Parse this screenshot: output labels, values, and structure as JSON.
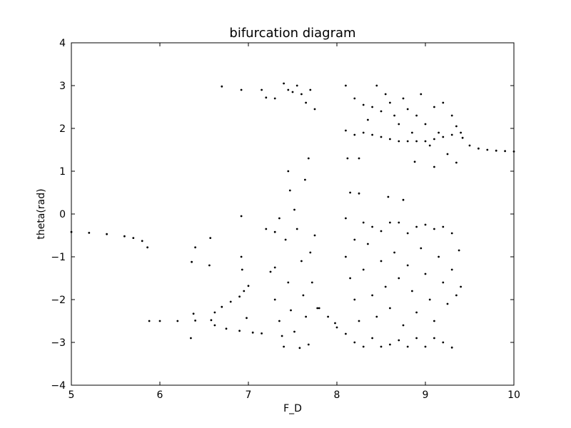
{
  "chart_data": {
    "type": "scatter",
    "title": "bifurcation diagram",
    "xlabel": "F_D",
    "ylabel": "theta(rad)",
    "xlim": [
      5,
      10
    ],
    "ylim": [
      -4,
      4
    ],
    "x_ticks": [
      5,
      6,
      7,
      8,
      9,
      10
    ],
    "y_ticks": [
      -4,
      -3,
      -2,
      -1,
      0,
      1,
      2,
      3,
      4
    ],
    "x_tick_labels": [
      "5",
      "6",
      "7",
      "8",
      "9",
      "10"
    ],
    "y_tick_labels": [
      "−4",
      "−3",
      "−2",
      "−1",
      "0",
      "1",
      "2",
      "3",
      "4"
    ],
    "grid": false,
    "marker_color": "#000000",
    "series": [
      {
        "points": [
          [
            5.0,
            -0.42
          ],
          [
            5.2,
            -0.44
          ],
          [
            5.4,
            -0.47
          ],
          [
            5.6,
            -0.52
          ],
          [
            5.7,
            -0.56
          ],
          [
            5.8,
            -0.63
          ],
          [
            5.86,
            -0.78
          ],
          [
            5.88,
            -2.5
          ],
          [
            6.0,
            -2.5
          ],
          [
            6.2,
            -2.5
          ],
          [
            6.4,
            -2.49
          ],
          [
            6.58,
            -2.48
          ],
          [
            6.62,
            -2.3
          ],
          [
            6.7,
            -2.17
          ],
          [
            6.8,
            -2.05
          ],
          [
            6.9,
            -1.93
          ],
          [
            6.95,
            -1.8
          ],
          [
            7.0,
            -1.68
          ],
          [
            6.62,
            -2.6
          ],
          [
            6.75,
            -2.68
          ],
          [
            6.9,
            -2.73
          ],
          [
            7.05,
            -2.77
          ],
          [
            7.15,
            -2.79
          ],
          [
            6.36,
            -1.12
          ],
          [
            6.4,
            -0.78
          ],
          [
            6.38,
            -2.33
          ],
          [
            6.35,
            -2.9
          ],
          [
            6.56,
            -1.2
          ],
          [
            6.57,
            -0.56
          ],
          [
            6.7,
            2.98
          ],
          [
            6.92,
            2.9
          ],
          [
            6.92,
            -0.05
          ],
          [
            6.92,
            -1.0
          ],
          [
            6.93,
            -1.3
          ],
          [
            6.98,
            -2.43
          ],
          [
            7.15,
            2.9
          ],
          [
            7.2,
            2.72
          ],
          [
            7.3,
            2.7
          ],
          [
            7.2,
            -0.35
          ],
          [
            7.3,
            -0.42
          ],
          [
            7.35,
            -0.1
          ],
          [
            7.25,
            -1.35
          ],
          [
            7.3,
            -1.25
          ],
          [
            7.3,
            -2.0
          ],
          [
            7.35,
            -2.5
          ],
          [
            7.38,
            -2.85
          ],
          [
            7.4,
            3.05
          ],
          [
            7.45,
            2.9
          ],
          [
            7.5,
            2.85
          ],
          [
            7.55,
            3.0
          ],
          [
            7.6,
            2.8
          ],
          [
            7.65,
            2.6
          ],
          [
            7.7,
            2.9
          ],
          [
            7.75,
            2.45
          ],
          [
            7.45,
            1.0
          ],
          [
            7.47,
            0.55
          ],
          [
            7.52,
            0.1
          ],
          [
            7.55,
            -0.35
          ],
          [
            7.6,
            -1.1
          ],
          [
            7.62,
            -1.9
          ],
          [
            7.65,
            -2.4
          ],
          [
            7.7,
            -0.9
          ],
          [
            7.72,
            -1.6
          ],
          [
            7.75,
            -0.5
          ],
          [
            7.78,
            -2.2
          ],
          [
            7.68,
            -3.05
          ],
          [
            7.58,
            -3.13
          ],
          [
            7.45,
            -1.6
          ],
          [
            7.48,
            -2.25
          ],
          [
            7.52,
            -2.75
          ],
          [
            7.4,
            -3.1
          ],
          [
            7.42,
            -0.6
          ],
          [
            7.68,
            1.3
          ],
          [
            7.64,
            0.8
          ],
          [
            7.8,
            -2.2
          ],
          [
            7.9,
            -2.4
          ],
          [
            7.98,
            -2.55
          ],
          [
            8.0,
            -2.65
          ],
          [
            8.1,
            3.0
          ],
          [
            8.2,
            2.7
          ],
          [
            8.3,
            2.55
          ],
          [
            8.35,
            2.2
          ],
          [
            8.4,
            2.5
          ],
          [
            8.45,
            3.0
          ],
          [
            8.5,
            2.4
          ],
          [
            8.55,
            2.8
          ],
          [
            8.6,
            2.6
          ],
          [
            8.65,
            2.3
          ],
          [
            8.7,
            2.1
          ],
          [
            8.75,
            2.7
          ],
          [
            8.8,
            2.45
          ],
          [
            8.85,
            1.9
          ],
          [
            8.9,
            2.3
          ],
          [
            8.95,
            2.8
          ],
          [
            9.0,
            2.1
          ],
          [
            9.05,
            1.6
          ],
          [
            9.1,
            2.5
          ],
          [
            9.15,
            1.9
          ],
          [
            9.2,
            2.6
          ],
          [
            9.25,
            1.4
          ],
          [
            9.3,
            2.3
          ],
          [
            9.35,
            2.05
          ],
          [
            8.1,
            1.95
          ],
          [
            8.2,
            1.85
          ],
          [
            8.3,
            1.9
          ],
          [
            8.4,
            1.85
          ],
          [
            8.5,
            1.8
          ],
          [
            8.6,
            1.75
          ],
          [
            8.7,
            1.7
          ],
          [
            8.8,
            1.7
          ],
          [
            8.9,
            1.7
          ],
          [
            9.0,
            1.7
          ],
          [
            9.1,
            1.75
          ],
          [
            9.2,
            1.8
          ],
          [
            9.3,
            1.85
          ],
          [
            9.4,
            1.9
          ],
          [
            9.42,
            1.78
          ],
          [
            9.5,
            1.6
          ],
          [
            9.6,
            1.53
          ],
          [
            9.7,
            1.5
          ],
          [
            9.8,
            1.48
          ],
          [
            9.9,
            1.47
          ],
          [
            10.0,
            1.46
          ],
          [
            8.12,
            1.3
          ],
          [
            8.25,
            1.3
          ],
          [
            8.88,
            1.22
          ],
          [
            9.1,
            1.1
          ],
          [
            9.35,
            1.2
          ],
          [
            8.1,
            -0.1
          ],
          [
            8.15,
            0.5
          ],
          [
            8.25,
            0.48
          ],
          [
            8.2,
            -0.6
          ],
          [
            8.3,
            -0.2
          ],
          [
            8.4,
            -0.3
          ],
          [
            8.5,
            -0.4
          ],
          [
            8.6,
            -0.2
          ],
          [
            8.7,
            -0.2
          ],
          [
            8.8,
            -0.45
          ],
          [
            8.9,
            -0.3
          ],
          [
            9.0,
            -0.25
          ],
          [
            9.1,
            -0.35
          ],
          [
            9.2,
            -0.3
          ],
          [
            9.3,
            -0.45
          ],
          [
            9.38,
            -0.85
          ],
          [
            8.1,
            -1.0
          ],
          [
            8.15,
            -1.5
          ],
          [
            8.2,
            -2.0
          ],
          [
            8.25,
            -2.5
          ],
          [
            8.3,
            -1.3
          ],
          [
            8.35,
            -0.7
          ],
          [
            8.4,
            -1.9
          ],
          [
            8.45,
            -2.4
          ],
          [
            8.5,
            -1.1
          ],
          [
            8.55,
            -1.7
          ],
          [
            8.6,
            -2.2
          ],
          [
            8.65,
            -0.9
          ],
          [
            8.7,
            -1.5
          ],
          [
            8.75,
            -2.6
          ],
          [
            8.8,
            -1.2
          ],
          [
            8.85,
            -1.8
          ],
          [
            8.9,
            -2.3
          ],
          [
            8.95,
            -0.8
          ],
          [
            9.0,
            -1.4
          ],
          [
            9.05,
            -2.0
          ],
          [
            9.1,
            -2.5
          ],
          [
            9.15,
            -1.0
          ],
          [
            9.2,
            -1.6
          ],
          [
            9.25,
            -2.1
          ],
          [
            9.3,
            -1.3
          ],
          [
            9.35,
            -1.9
          ],
          [
            9.4,
            -1.7
          ],
          [
            8.1,
            -2.8
          ],
          [
            8.2,
            -3.0
          ],
          [
            8.3,
            -3.1
          ],
          [
            8.4,
            -2.9
          ],
          [
            8.5,
            -3.1
          ],
          [
            8.6,
            -3.05
          ],
          [
            8.7,
            -2.95
          ],
          [
            8.8,
            -3.1
          ],
          [
            8.9,
            -2.9
          ],
          [
            9.0,
            -3.1
          ],
          [
            9.1,
            -2.9
          ],
          [
            9.2,
            -3.0
          ],
          [
            9.3,
            -3.12
          ],
          [
            8.58,
            0.4
          ],
          [
            8.75,
            0.33
          ]
        ]
      }
    ]
  }
}
